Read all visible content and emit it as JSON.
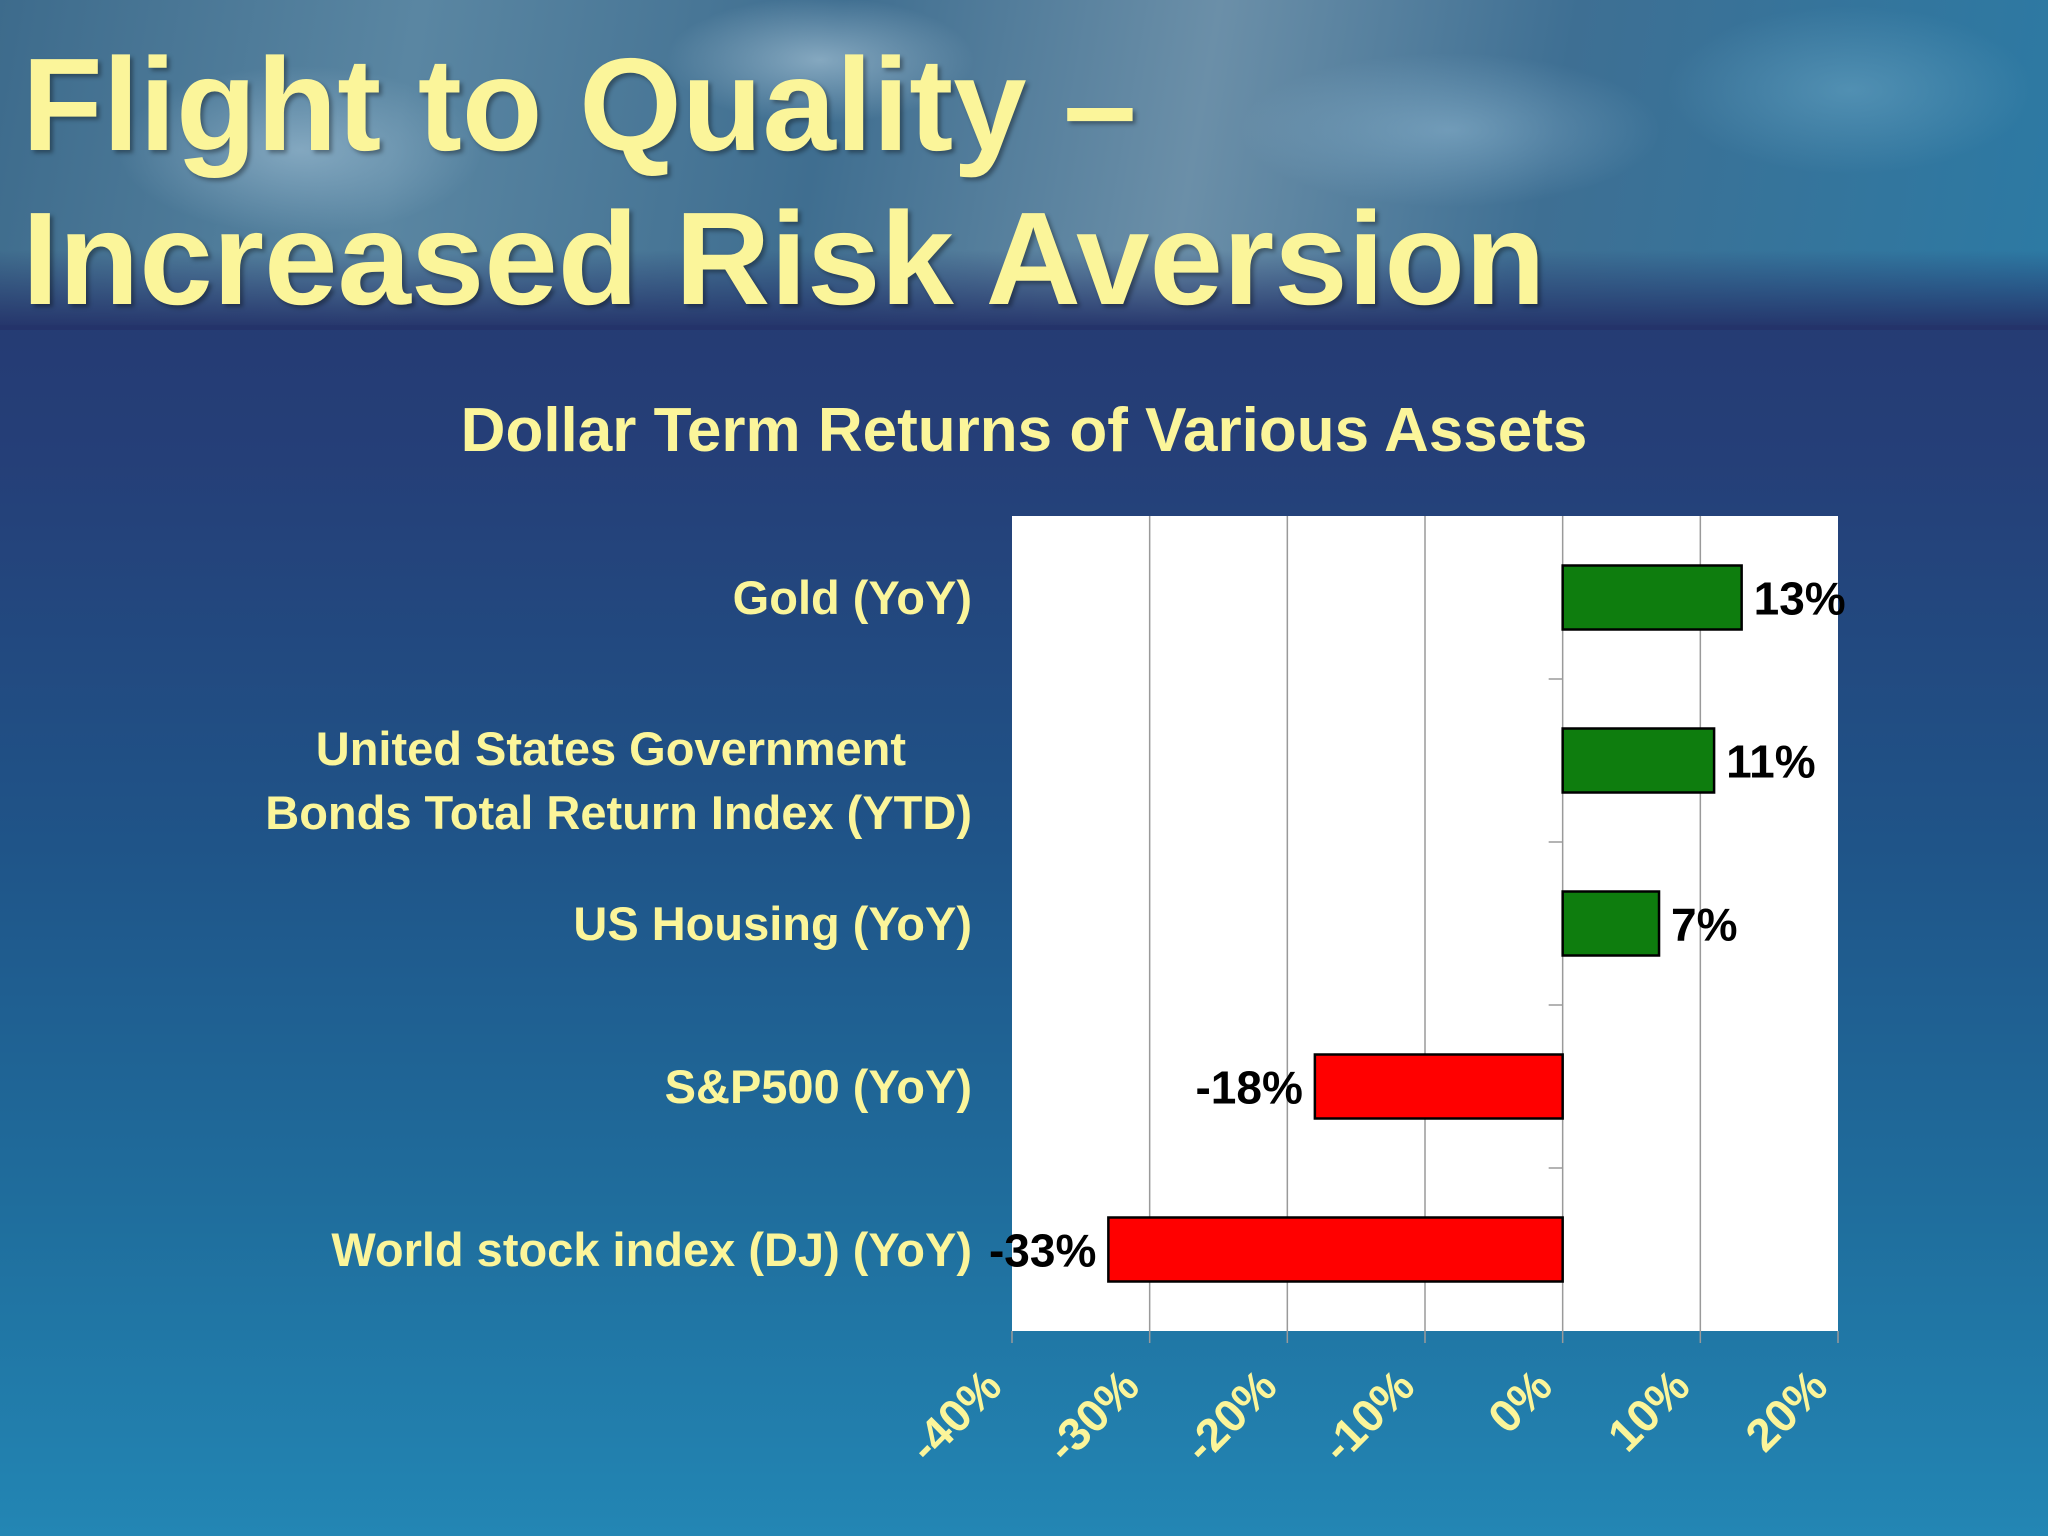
{
  "slide": {
    "title_line1": "Flight to Quality –",
    "title_line2": "Increased Risk Aversion"
  },
  "chart_data": {
    "type": "bar",
    "orientation": "horizontal",
    "title": "Dollar Term Returns of Various Assets",
    "categories": [
      "Gold (YoY)",
      "United States Government Bonds Total Return Index (YTD)",
      "US Housing (YoY)",
      "S&P500 (YoY)",
      "World stock index (DJ) (YoY)"
    ],
    "category_lines": [
      [
        "Gold (YoY)"
      ],
      [
        "United States Government",
        "Bonds Total Return Index (YTD)"
      ],
      [
        "US Housing (YoY)"
      ],
      [
        "S&P500 (YoY)"
      ],
      [
        "World stock index (DJ) (YoY)"
      ]
    ],
    "values": [
      13,
      11,
      7,
      -18,
      -33
    ],
    "value_labels": [
      "13%",
      "11%",
      "7%",
      "-18%",
      "-33%"
    ],
    "xlim": [
      -40,
      20
    ],
    "x_ticks": [
      -40,
      -30,
      -20,
      -10,
      0,
      10,
      20
    ],
    "x_tick_labels": [
      "-40%",
      "-30%",
      "-20%",
      "-10%",
      "0%",
      "10%",
      "20%"
    ],
    "grid": true,
    "legend": "none",
    "colors": {
      "positive": "#0e7d0e",
      "negative": "#ff0000",
      "plot_background": "#ffffff",
      "text": "#fbf59a"
    }
  }
}
